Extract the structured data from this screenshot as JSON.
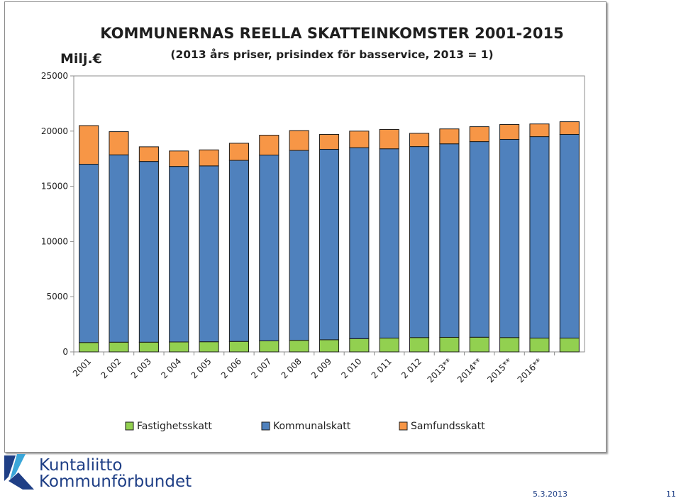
{
  "chart_data": {
    "type": "bar",
    "stacked": true,
    "title": "KOMMUNERNAS REELLA SKATTEINKOMSTER 2001-2015",
    "subtitle": "(2013 års priser, prisindex för basservice, 2013 = 1)",
    "ylabel": "Milj.€",
    "ylim": [
      0,
      25000
    ],
    "yticks": [
      0,
      5000,
      10000,
      15000,
      20000,
      25000
    ],
    "grid": false,
    "legend_position": "bottom",
    "categories": [
      "2001",
      "2 002",
      "2 003",
      "2 004",
      "2 005",
      "2 006",
      "2 007",
      "2 008",
      "2 009",
      "2 010",
      "2 011",
      "2 012",
      "2013**",
      "2014**",
      "2015**",
      "2016**",
      ""
    ],
    "series": [
      {
        "name": "Fastighetsskatt",
        "color": "#92d050",
        "values": [
          850,
          880,
          880,
          900,
          920,
          950,
          1000,
          1050,
          1100,
          1200,
          1250,
          1300,
          1320,
          1330,
          1300,
          1250,
          1250
        ]
      },
      {
        "name": "Kommunalskatt",
        "color": "#4f81bd",
        "values": [
          16150,
          16970,
          16370,
          15900,
          15930,
          16400,
          16830,
          17200,
          17250,
          17300,
          17150,
          17300,
          17530,
          17720,
          17950,
          18250,
          18450
        ]
      },
      {
        "name": "Samfundsskatt",
        "color": "#f79646",
        "values": [
          3500,
          2100,
          1330,
          1400,
          1450,
          1550,
          1800,
          1800,
          1350,
          1500,
          1750,
          1200,
          1350,
          1350,
          1350,
          1150,
          1150
        ]
      }
    ]
  },
  "logo": {
    "line1": "Kuntaliitto",
    "line2": "Kommunförbundet"
  },
  "footer": {
    "date": "5.3.2013",
    "page": "11"
  }
}
